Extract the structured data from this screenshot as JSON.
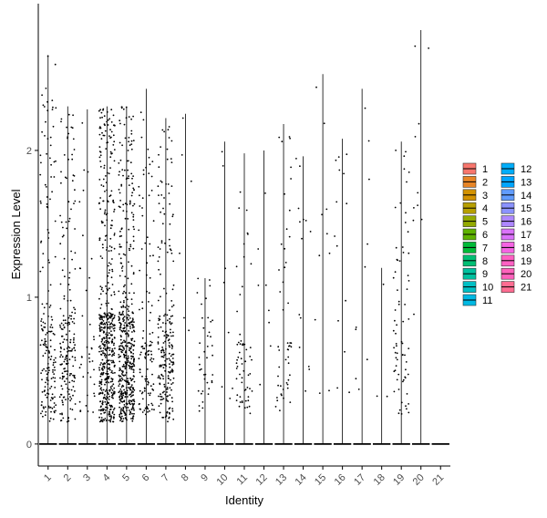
{
  "chart_data": {
    "type": "violin",
    "title": "",
    "xlabel": "Identity",
    "ylabel": "Expression Level",
    "ylim": [
      -0.15,
      3.0
    ],
    "yticks": [
      0,
      1,
      2
    ],
    "legend_placement": "right",
    "grid": false,
    "categories": [
      "1",
      "2",
      "3",
      "4",
      "5",
      "6",
      "7",
      "8",
      "9",
      "10",
      "11",
      "12",
      "13",
      "14",
      "15",
      "16",
      "17",
      "18",
      "19",
      "20",
      "21"
    ],
    "colors": [
      "#F8766D",
      "#E88526",
      "#D39200",
      "#B79F00",
      "#93AA00",
      "#5EB300",
      "#00BA38",
      "#00BF74",
      "#00C19F",
      "#00BFC4",
      "#00B9E3",
      "#00ADFA",
      "#00A5FF",
      "#619CFF",
      "#8B93FF",
      "#AE87FF",
      "#DB72FB",
      "#F564E3",
      "#FF61C3",
      "#FF62BC",
      "#FF6C91"
    ],
    "series": [
      {
        "name": "1",
        "max": 2.65,
        "n": 180,
        "density": "high"
      },
      {
        "name": "2",
        "max": 2.3,
        "n": 200,
        "density": "high"
      },
      {
        "name": "3",
        "max": 2.28,
        "n": 40,
        "density": "low"
      },
      {
        "name": "4",
        "max": 2.3,
        "n": 520,
        "density": "very-high"
      },
      {
        "name": "5",
        "max": 2.3,
        "n": 500,
        "density": "very-high"
      },
      {
        "name": "6",
        "max": 2.42,
        "n": 120,
        "density": "med"
      },
      {
        "name": "7",
        "max": 2.22,
        "n": 220,
        "density": "high"
      },
      {
        "name": "8",
        "max": 2.25,
        "n": 6,
        "density": "sparse"
      },
      {
        "name": "9",
        "max": 1.13,
        "n": 40,
        "density": "low"
      },
      {
        "name": "10",
        "max": 2.06,
        "n": 8,
        "density": "sparse"
      },
      {
        "name": "11",
        "max": 1.98,
        "n": 60,
        "density": "low"
      },
      {
        "name": "12",
        "max": 2.0,
        "n": 8,
        "density": "sparse"
      },
      {
        "name": "13",
        "max": 2.18,
        "n": 50,
        "density": "low"
      },
      {
        "name": "14",
        "max": 1.96,
        "n": 14,
        "density": "sparse"
      },
      {
        "name": "15",
        "max": 2.52,
        "n": 10,
        "density": "sparse"
      },
      {
        "name": "16",
        "max": 2.08,
        "n": 14,
        "density": "sparse"
      },
      {
        "name": "17",
        "max": 2.42,
        "n": 10,
        "density": "sparse"
      },
      {
        "name": "18",
        "max": 1.2,
        "n": 3,
        "density": "sparse"
      },
      {
        "name": "19",
        "max": 2.06,
        "n": 70,
        "density": "med"
      },
      {
        "name": "20",
        "max": 2.82,
        "n": 10,
        "density": "sparse"
      },
      {
        "name": "21",
        "max": 0.0,
        "n": 0,
        "density": "none"
      }
    ]
  }
}
